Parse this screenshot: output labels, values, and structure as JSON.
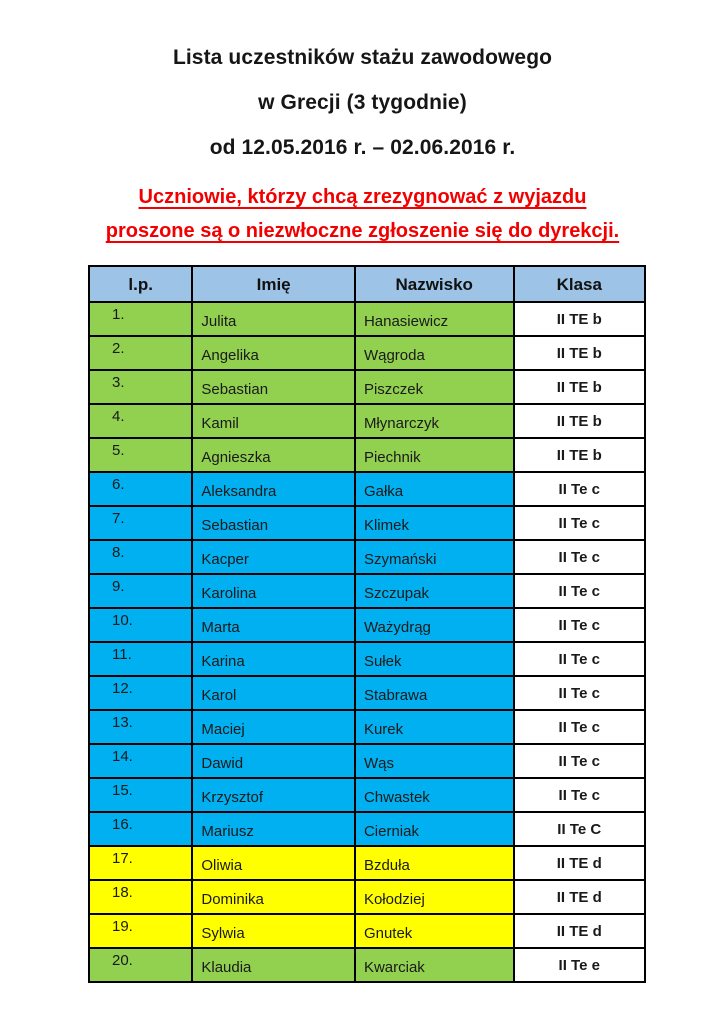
{
  "document": {
    "title_lines": [
      "Lista uczestników stażu zawodowego",
      "w Grecji (3 tygodnie)",
      "od 12.05.2016 r. – 02.06.2016 r."
    ],
    "notice_lines": [
      "Uczniowie, którzy chcą zrezygnować z wyjazdu",
      "proszone są o niezwłoczne zgłoszenie się do dyrekcji."
    ]
  },
  "table": {
    "headers": [
      "l.p.",
      "Imię",
      "Nazwisko",
      "Klasa"
    ],
    "rows": [
      {
        "lp": "1.",
        "imie": "Julita",
        "nazwisko": "Hanasiewicz",
        "klasa": "II TE b",
        "group": "green"
      },
      {
        "lp": "2.",
        "imie": "Angelika",
        "nazwisko": "Wągroda",
        "klasa": "II TE b",
        "group": "green"
      },
      {
        "lp": "3.",
        "imie": "Sebastian",
        "nazwisko": "Piszczek",
        "klasa": "II TE b",
        "group": "green"
      },
      {
        "lp": "4.",
        "imie": "Kamil",
        "nazwisko": "Młynarczyk",
        "klasa": "II TE b",
        "group": "green"
      },
      {
        "lp": "5.",
        "imie": "Agnieszka",
        "nazwisko": "Piechnik",
        "klasa": "II TE b",
        "group": "green"
      },
      {
        "lp": "6.",
        "imie": "Aleksandra",
        "nazwisko": "Gałka",
        "klasa": "II Te c",
        "group": "blue"
      },
      {
        "lp": "7.",
        "imie": "Sebastian",
        "nazwisko": "Klimek",
        "klasa": "II Te c",
        "group": "blue"
      },
      {
        "lp": "8.",
        "imie": "Kacper",
        "nazwisko": "Szymański",
        "klasa": "II Te c",
        "group": "blue"
      },
      {
        "lp": "9.",
        "imie": "Karolina",
        "nazwisko": "Szczupak",
        "klasa": "II Te c",
        "group": "blue"
      },
      {
        "lp": "10.",
        "imie": "Marta",
        "nazwisko": "Ważydrąg",
        "klasa": "II Te c",
        "group": "blue"
      },
      {
        "lp": "11.",
        "imie": "Karina",
        "nazwisko": "Sułek",
        "klasa": "II Te c",
        "group": "blue"
      },
      {
        "lp": "12.",
        "imie": "Karol",
        "nazwisko": "Stabrawa",
        "klasa": "II Te c",
        "group": "blue"
      },
      {
        "lp": "13.",
        "imie": "Maciej",
        "nazwisko": "Kurek",
        "klasa": "II Te c",
        "group": "blue"
      },
      {
        "lp": "14.",
        "imie": "Dawid",
        "nazwisko": "Wąs",
        "klasa": "II Te c",
        "group": "blue"
      },
      {
        "lp": "15.",
        "imie": "Krzysztof",
        "nazwisko": "Chwastek",
        "klasa": "II Te c",
        "group": "blue"
      },
      {
        "lp": "16.",
        "imie": "Mariusz",
        "nazwisko": "Cierniak",
        "klasa": "II Te C",
        "group": "blue"
      },
      {
        "lp": "17.",
        "imie": "Oliwia",
        "nazwisko": "Bzduła",
        "klasa": "II TE d",
        "group": "yellow"
      },
      {
        "lp": "18.",
        "imie": "Dominika",
        "nazwisko": "Kołodziej",
        "klasa": "II TE d",
        "group": "yellow"
      },
      {
        "lp": "19.",
        "imie": "Sylwia",
        "nazwisko": "Gnutek",
        "klasa": "II TE d",
        "group": "yellow"
      },
      {
        "lp": "20.",
        "imie": "Klaudia",
        "nazwisko": "Kwarciak",
        "klasa": "II Te e",
        "group": "green"
      }
    ]
  },
  "colors": {
    "header_bg": "#9DC3E6",
    "green": "#92D050",
    "blue": "#00B0F0",
    "yellow": "#FFFF00",
    "notice_red": "#F20000",
    "border": "#000000"
  }
}
